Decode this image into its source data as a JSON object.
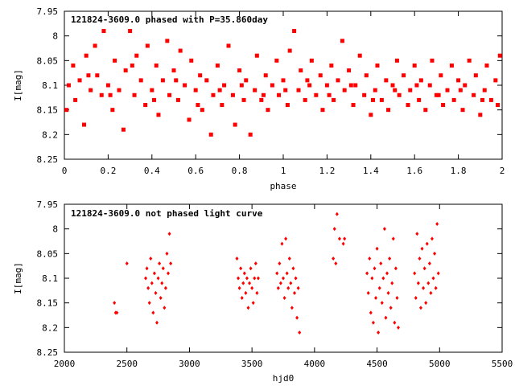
{
  "chart_data": [
    {
      "type": "scatter",
      "title": "121824-3609.0 phased with P=35.860day",
      "xlabel": "phase",
      "ylabel": "I[mag]",
      "xlim": [
        0,
        2
      ],
      "ylim": [
        7.95,
        8.25
      ],
      "y_inverted": true,
      "x_ticks": [
        "0",
        "0.2",
        "0.4",
        "0.6",
        "0.8",
        "1",
        "1.2",
        "1.4",
        "1.6",
        "1.8",
        "2"
      ],
      "y_ticks": [
        "7.95",
        "8",
        "8.05",
        "8.1",
        "8.15",
        "8.2",
        "8.25"
      ],
      "marker": "filled-square",
      "color": "#ff0000",
      "grid": false,
      "points": [
        [
          0.02,
          8.1
        ],
        [
          0.04,
          8.06
        ],
        [
          0.05,
          8.13
        ],
        [
          0.07,
          8.09
        ],
        [
          0.09,
          8.18
        ],
        [
          0.1,
          8.04
        ],
        [
          0.12,
          8.11
        ],
        [
          0.14,
          8.02
        ],
        [
          0.15,
          8.08
        ],
        [
          0.17,
          8.12
        ],
        [
          0.18,
          7.99
        ],
        [
          0.2,
          8.1
        ],
        [
          0.22,
          8.15
        ],
        [
          0.23,
          8.05
        ],
        [
          0.25,
          8.11
        ],
        [
          0.27,
          8.19
        ],
        [
          0.28,
          8.07
        ],
        [
          0.3,
          7.99
        ],
        [
          0.32,
          8.12
        ],
        [
          0.33,
          8.04
        ],
        [
          0.35,
          8.09
        ],
        [
          0.37,
          8.14
        ],
        [
          0.38,
          8.02
        ],
        [
          0.4,
          8.11
        ],
        [
          0.42,
          8.06
        ],
        [
          0.43,
          8.16
        ],
        [
          0.45,
          8.09
        ],
        [
          0.47,
          8.01
        ],
        [
          0.48,
          8.12
        ],
        [
          0.5,
          8.07
        ],
        [
          0.52,
          8.13
        ],
        [
          0.53,
          8.03
        ],
        [
          0.55,
          8.1
        ],
        [
          0.57,
          8.17
        ],
        [
          0.58,
          8.05
        ],
        [
          0.6,
          8.11
        ],
        [
          0.62,
          8.08
        ],
        [
          0.63,
          8.15
        ],
        [
          0.65,
          8.09
        ],
        [
          0.67,
          8.2
        ],
        [
          0.68,
          8.12
        ],
        [
          0.7,
          8.06
        ],
        [
          0.72,
          8.14
        ],
        [
          0.73,
          8.1
        ],
        [
          0.75,
          8.02
        ],
        [
          0.77,
          8.12
        ],
        [
          0.78,
          8.18
        ],
        [
          0.8,
          8.07
        ],
        [
          0.82,
          8.13
        ],
        [
          0.83,
          8.09
        ],
        [
          0.85,
          8.2
        ],
        [
          0.87,
          8.11
        ],
        [
          0.88,
          8.04
        ],
        [
          0.9,
          8.13
        ],
        [
          0.92,
          8.08
        ],
        [
          0.93,
          8.15
        ],
        [
          0.95,
          8.1
        ],
        [
          0.97,
          8.05
        ],
        [
          0.98,
          8.12
        ],
        [
          1.0,
          8.09
        ],
        [
          1.02,
          8.14
        ],
        [
          1.03,
          8.03
        ],
        [
          1.05,
          7.99
        ],
        [
          1.07,
          8.11
        ],
        [
          1.08,
          8.07
        ],
        [
          1.1,
          8.13
        ],
        [
          1.12,
          8.1
        ],
        [
          1.13,
          8.05
        ],
        [
          1.15,
          8.12
        ],
        [
          1.17,
          8.08
        ],
        [
          1.18,
          8.15
        ],
        [
          1.2,
          8.1
        ],
        [
          1.22,
          8.06
        ],
        [
          1.23,
          8.13
        ],
        [
          1.25,
          8.09
        ],
        [
          1.27,
          8.01
        ],
        [
          1.28,
          8.11
        ],
        [
          1.3,
          8.07
        ],
        [
          1.32,
          8.14
        ],
        [
          1.33,
          8.1
        ],
        [
          1.35,
          8.04
        ],
        [
          1.37,
          8.12
        ],
        [
          1.38,
          8.08
        ],
        [
          1.4,
          8.16
        ],
        [
          1.42,
          8.11
        ],
        [
          1.43,
          8.06
        ],
        [
          1.45,
          8.13
        ],
        [
          1.47,
          8.09
        ],
        [
          1.48,
          8.15
        ],
        [
          1.5,
          8.1
        ],
        [
          1.52,
          8.05
        ],
        [
          1.53,
          8.12
        ],
        [
          1.55,
          8.08
        ],
        [
          1.57,
          8.14
        ],
        [
          1.58,
          8.11
        ],
        [
          1.6,
          8.06
        ],
        [
          1.62,
          8.13
        ],
        [
          1.63,
          8.09
        ],
        [
          1.65,
          8.15
        ],
        [
          1.67,
          8.1
        ],
        [
          1.68,
          8.05
        ],
        [
          1.7,
          8.12
        ],
        [
          1.72,
          8.08
        ],
        [
          1.73,
          8.14
        ],
        [
          1.75,
          8.11
        ],
        [
          1.77,
          8.06
        ],
        [
          1.78,
          8.13
        ],
        [
          1.8,
          8.09
        ],
        [
          1.82,
          8.15
        ],
        [
          1.83,
          8.1
        ],
        [
          1.85,
          8.05
        ],
        [
          1.87,
          8.12
        ],
        [
          1.88,
          8.08
        ],
        [
          1.9,
          8.16
        ],
        [
          1.92,
          8.11
        ],
        [
          1.93,
          8.06
        ],
        [
          1.95,
          8.13
        ],
        [
          1.97,
          8.09
        ],
        [
          1.98,
          8.14
        ],
        [
          0.01,
          8.15
        ],
        [
          0.11,
          8.08
        ],
        [
          0.21,
          8.12
        ],
        [
          0.31,
          8.06
        ],
        [
          0.41,
          8.13
        ],
        [
          0.51,
          8.09
        ],
        [
          0.61,
          8.14
        ],
        [
          0.71,
          8.11
        ],
        [
          0.81,
          8.1
        ],
        [
          0.91,
          8.12
        ],
        [
          1.01,
          8.11
        ],
        [
          1.11,
          8.09
        ],
        [
          1.21,
          8.12
        ],
        [
          1.31,
          8.1
        ],
        [
          1.41,
          8.13
        ],
        [
          1.51,
          8.11
        ],
        [
          1.61,
          8.1
        ],
        [
          1.71,
          8.12
        ],
        [
          1.81,
          8.11
        ],
        [
          1.91,
          8.13
        ],
        [
          1.99,
          8.04
        ]
      ]
    },
    {
      "type": "scatter",
      "title": "121824-3609.0 not phased light curve",
      "xlabel": "hjd0",
      "ylabel": "I[mag]",
      "xlim": [
        2000,
        5500
      ],
      "ylim": [
        7.95,
        8.25
      ],
      "y_inverted": true,
      "x_ticks": [
        "2000",
        "2500",
        "3000",
        "3500",
        "4000",
        "4500",
        "5000",
        "5500"
      ],
      "y_ticks": [
        "7.95",
        "8",
        "8.05",
        "8.1",
        "8.15",
        "8.2",
        "8.25"
      ],
      "marker": "diamond",
      "color": "#ff0000",
      "grid": false,
      "points": [
        [
          2400,
          8.15
        ],
        [
          2410,
          8.17
        ],
        [
          2420,
          8.17
        ],
        [
          2500,
          8.07
        ],
        [
          2650,
          8.1
        ],
        [
          2660,
          8.08
        ],
        [
          2670,
          8.12
        ],
        [
          2680,
          8.15
        ],
        [
          2690,
          8.06
        ],
        [
          2700,
          8.11
        ],
        [
          2710,
          8.17
        ],
        [
          2720,
          8.09
        ],
        [
          2730,
          8.13
        ],
        [
          2740,
          8.19
        ],
        [
          2750,
          8.1
        ],
        [
          2760,
          8.07
        ],
        [
          2770,
          8.14
        ],
        [
          2780,
          8.11
        ],
        [
          2790,
          8.08
        ],
        [
          2800,
          8.16
        ],
        [
          2810,
          8.12
        ],
        [
          2820,
          8.05
        ],
        [
          2830,
          8.09
        ],
        [
          2840,
          8.01
        ],
        [
          2850,
          8.07
        ],
        [
          3380,
          8.06
        ],
        [
          3390,
          8.1
        ],
        [
          3400,
          8.12
        ],
        [
          3410,
          8.08
        ],
        [
          3420,
          8.14
        ],
        [
          3430,
          8.11
        ],
        [
          3440,
          8.09
        ],
        [
          3450,
          8.13
        ],
        [
          3460,
          8.1
        ],
        [
          3470,
          8.16
        ],
        [
          3480,
          8.11
        ],
        [
          3490,
          8.08
        ],
        [
          3500,
          8.12
        ],
        [
          3510,
          8.15
        ],
        [
          3520,
          8.1
        ],
        [
          3530,
          8.07
        ],
        [
          3540,
          8.13
        ],
        [
          3550,
          8.1
        ],
        [
          3700,
          8.09
        ],
        [
          3710,
          8.12
        ],
        [
          3720,
          8.07
        ],
        [
          3730,
          8.11
        ],
        [
          3740,
          8.03
        ],
        [
          3750,
          8.1
        ],
        [
          3760,
          8.14
        ],
        [
          3770,
          8.02
        ],
        [
          3780,
          8.09
        ],
        [
          3790,
          8.12
        ],
        [
          3800,
          8.06
        ],
        [
          3810,
          8.11
        ],
        [
          3820,
          8.16
        ],
        [
          3830,
          8.08
        ],
        [
          3840,
          8.13
        ],
        [
          3850,
          8.1
        ],
        [
          3860,
          8.18
        ],
        [
          3870,
          8.12
        ],
        [
          3880,
          8.21
        ],
        [
          4150,
          8.06
        ],
        [
          4160,
          8.0
        ],
        [
          4170,
          8.07
        ],
        [
          4180,
          7.97
        ],
        [
          4200,
          8.02
        ],
        [
          4230,
          8.03
        ],
        [
          4240,
          8.02
        ],
        [
          4420,
          8.09
        ],
        [
          4430,
          8.13
        ],
        [
          4440,
          8.06
        ],
        [
          4450,
          8.17
        ],
        [
          4460,
          8.1
        ],
        [
          4470,
          8.19
        ],
        [
          4480,
          8.08
        ],
        [
          4490,
          8.14
        ],
        [
          4500,
          8.04
        ],
        [
          4510,
          8.21
        ],
        [
          4520,
          8.12
        ],
        [
          4530,
          8.07
        ],
        [
          4540,
          8.15
        ],
        [
          4550,
          8.1
        ],
        [
          4560,
          8.0
        ],
        [
          4570,
          8.18
        ],
        [
          4580,
          8.09
        ],
        [
          4590,
          8.13
        ],
        [
          4600,
          8.06
        ],
        [
          4610,
          8.16
        ],
        [
          4620,
          8.11
        ],
        [
          4630,
          8.02
        ],
        [
          4640,
          8.19
        ],
        [
          4650,
          8.08
        ],
        [
          4660,
          8.14
        ],
        [
          4670,
          8.2
        ],
        [
          4800,
          8.09
        ],
        [
          4810,
          8.14
        ],
        [
          4820,
          8.01
        ],
        [
          4830,
          8.11
        ],
        [
          4840,
          8.06
        ],
        [
          4850,
          8.16
        ],
        [
          4860,
          8.04
        ],
        [
          4870,
          8.12
        ],
        [
          4880,
          8.08
        ],
        [
          4890,
          8.15
        ],
        [
          4900,
          8.03
        ],
        [
          4910,
          8.11
        ],
        [
          4920,
          8.07
        ],
        [
          4930,
          8.13
        ],
        [
          4940,
          8.02
        ],
        [
          4950,
          8.1
        ],
        [
          4960,
          8.05
        ],
        [
          4970,
          8.12
        ],
        [
          4980,
          7.99
        ],
        [
          4990,
          8.09
        ]
      ]
    }
  ]
}
